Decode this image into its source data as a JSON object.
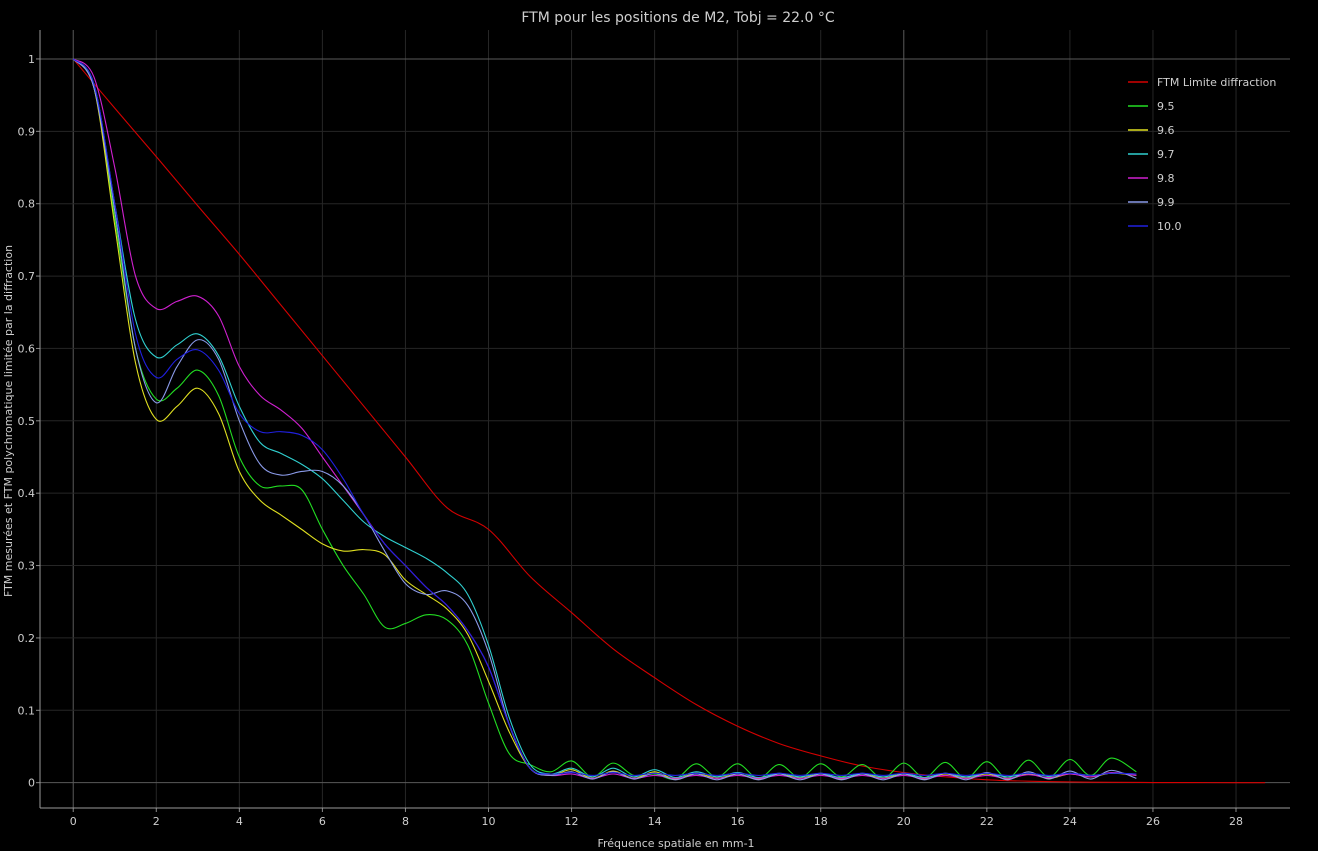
{
  "chart_data": {
    "type": "line",
    "title": "FTM pour les positions de M2, Tobj = 22.0 °C",
    "xlabel": "Fréquence spatiale en mm-1",
    "ylabel": "FTM mesurées et FTM polychromatique limitée par la diffraction",
    "xlim": [
      -0.8,
      29.3
    ],
    "ylim": [
      -0.035,
      1.04
    ],
    "x_ticks": [
      "0",
      "2",
      "4",
      "6",
      "8",
      "10",
      "12",
      "14",
      "16",
      "18",
      "20",
      "22",
      "24",
      "26",
      "28"
    ],
    "y_ticks": [
      "0",
      "0.1",
      "0.2",
      "0.3",
      "0.4",
      "0.5",
      "0.6",
      "0.7",
      "0.8",
      "0.9",
      "1"
    ],
    "grid": true,
    "legend_position": "top-right",
    "series": [
      {
        "name": "FTM Limite diffraction",
        "color": "#d40000",
        "x": [
          0,
          1,
          2,
          3,
          4,
          5,
          6,
          7,
          8,
          9,
          10,
          11,
          12,
          13,
          14,
          15,
          16,
          17,
          18,
          19,
          20,
          21,
          22,
          23,
          24,
          25,
          26,
          27,
          28,
          28.7
        ],
        "y": [
          1.0,
          0.932,
          0.865,
          0.797,
          0.73,
          0.66,
          0.59,
          0.52,
          0.45,
          0.38,
          0.35,
          0.285,
          0.235,
          0.185,
          0.145,
          0.108,
          0.078,
          0.054,
          0.037,
          0.023,
          0.014,
          0.008,
          0.004,
          0.002,
          0.001,
          0.0005,
          0.0002,
          0.0001,
          0.0,
          0.0
        ]
      },
      {
        "name": "9.5",
        "color": "#22dd22",
        "x": [
          0,
          0.5,
          1.0,
          1.5,
          2.0,
          2.5,
          3.0,
          3.5,
          4.0,
          4.5,
          5.0,
          5.5,
          6.0,
          6.5,
          7.0,
          7.5,
          8.0,
          8.5,
          9.0,
          9.5,
          10.0,
          10.5,
          11.0,
          11.5,
          12.0,
          12.5,
          13.0,
          13.5,
          14.0,
          14.5,
          15.0,
          15.5,
          16.0,
          16.5,
          17.0,
          17.5,
          18.0,
          18.5,
          19.0,
          19.5,
          20.0,
          20.5,
          21.0,
          21.5,
          22.0,
          22.5,
          23.0,
          23.5,
          24.0,
          24.5,
          25.0,
          25.6
        ],
        "y": [
          1.0,
          0.96,
          0.78,
          0.6,
          0.53,
          0.545,
          0.57,
          0.535,
          0.45,
          0.41,
          0.41,
          0.405,
          0.35,
          0.3,
          0.26,
          0.215,
          0.22,
          0.232,
          0.225,
          0.19,
          0.11,
          0.04,
          0.025,
          0.015,
          0.03,
          0.008,
          0.027,
          0.01,
          0.012,
          0.005,
          0.026,
          0.008,
          0.026,
          0.006,
          0.025,
          0.007,
          0.026,
          0.008,
          0.025,
          0.006,
          0.027,
          0.007,
          0.028,
          0.006,
          0.029,
          0.006,
          0.031,
          0.008,
          0.032,
          0.01,
          0.034,
          0.015
        ]
      },
      {
        "name": "9.6",
        "color": "#e0e020",
        "x": [
          0,
          0.5,
          1.0,
          1.5,
          2.0,
          2.5,
          3.0,
          3.5,
          4.0,
          4.5,
          5.0,
          5.5,
          6.0,
          6.5,
          7.0,
          7.5,
          8.0,
          8.5,
          9.0,
          9.5,
          10.0,
          10.5,
          11.0,
          11.5,
          12.0,
          12.5,
          13.0,
          13.5,
          14.0,
          14.5,
          15.0,
          15.5,
          16.0,
          16.5,
          17.0,
          17.5,
          18.0,
          18.5,
          19.0,
          19.5,
          20.0,
          20.5,
          21.0,
          21.5,
          22.0,
          22.5,
          23.0,
          23.5,
          24.0,
          24.5,
          25.0,
          25.6
        ],
        "y": [
          1.0,
          0.96,
          0.77,
          0.58,
          0.502,
          0.52,
          0.545,
          0.51,
          0.43,
          0.39,
          0.37,
          0.35,
          0.33,
          0.32,
          0.322,
          0.315,
          0.28,
          0.26,
          0.24,
          0.205,
          0.14,
          0.07,
          0.02,
          0.01,
          0.018,
          0.006,
          0.016,
          0.006,
          0.015,
          0.005,
          0.013,
          0.006,
          0.012,
          0.005,
          0.012,
          0.006,
          0.012,
          0.005,
          0.012,
          0.006,
          0.012,
          0.005,
          0.012,
          0.006,
          0.012,
          0.005,
          0.012,
          0.006,
          0.012,
          0.008,
          0.013,
          0.01
        ]
      },
      {
        "name": "9.7",
        "color": "#30d0d0",
        "x": [
          0,
          0.5,
          1.0,
          1.5,
          2.0,
          2.5,
          3.0,
          3.5,
          4.0,
          4.5,
          5.0,
          5.5,
          6.0,
          6.5,
          7.0,
          7.5,
          8.0,
          8.5,
          9.0,
          9.5,
          10.0,
          10.5,
          11.0,
          11.5,
          12.0,
          12.5,
          13.0,
          13.5,
          14.0,
          14.5,
          15.0,
          15.5,
          16.0,
          16.5,
          17.0,
          17.5,
          18.0,
          18.5,
          19.0,
          19.5,
          20.0,
          20.5,
          21.0,
          21.5,
          22.0,
          22.5,
          23.0,
          23.5,
          24.0,
          24.5,
          25.0,
          25.6
        ],
        "y": [
          1.0,
          0.965,
          0.8,
          0.64,
          0.588,
          0.605,
          0.62,
          0.59,
          0.52,
          0.47,
          0.455,
          0.44,
          0.42,
          0.39,
          0.36,
          0.34,
          0.325,
          0.31,
          0.29,
          0.26,
          0.19,
          0.09,
          0.025,
          0.012,
          0.02,
          0.008,
          0.02,
          0.008,
          0.018,
          0.007,
          0.015,
          0.008,
          0.014,
          0.007,
          0.013,
          0.008,
          0.013,
          0.007,
          0.013,
          0.008,
          0.013,
          0.007,
          0.013,
          0.008,
          0.013,
          0.008,
          0.013,
          0.009,
          0.013,
          0.01,
          0.013,
          0.012
        ]
      },
      {
        "name": "9.8",
        "color": "#d020d0",
        "x": [
          0,
          0.5,
          1.0,
          1.5,
          2.0,
          2.5,
          3.0,
          3.5,
          4.0,
          4.5,
          5.0,
          5.5,
          6.0,
          6.5,
          7.0,
          7.5,
          8.0,
          8.5,
          9.0,
          9.5,
          10.0,
          10.5,
          11.0,
          11.5,
          12.0,
          12.5,
          13.0,
          13.5,
          14.0,
          14.5,
          15.0,
          15.5,
          16.0,
          16.5,
          17.0,
          17.5,
          18.0,
          18.5,
          19.0,
          19.5,
          20.0,
          20.5,
          21.0,
          21.5,
          22.0,
          22.5,
          23.0,
          23.5,
          24.0,
          24.5,
          25.0,
          25.6
        ],
        "y": [
          1.0,
          0.975,
          0.85,
          0.7,
          0.655,
          0.665,
          0.672,
          0.645,
          0.575,
          0.535,
          0.515,
          0.49,
          0.45,
          0.41,
          0.37,
          0.33,
          0.3,
          0.27,
          0.245,
          0.21,
          0.16,
          0.08,
          0.02,
          0.01,
          0.012,
          0.006,
          0.012,
          0.006,
          0.01,
          0.006,
          0.01,
          0.006,
          0.01,
          0.006,
          0.01,
          0.006,
          0.01,
          0.006,
          0.01,
          0.006,
          0.01,
          0.006,
          0.01,
          0.006,
          0.01,
          0.006,
          0.011,
          0.007,
          0.012,
          0.008,
          0.014,
          0.01
        ]
      },
      {
        "name": "9.9",
        "color": "#8a9ae8",
        "x": [
          0,
          0.5,
          1.0,
          1.5,
          2.0,
          2.5,
          3.0,
          3.5,
          4.0,
          4.5,
          5.0,
          5.5,
          6.0,
          6.5,
          7.0,
          7.5,
          8.0,
          8.5,
          9.0,
          9.5,
          10.0,
          10.5,
          11.0,
          11.5,
          12.0,
          12.5,
          13.0,
          13.5,
          14.0,
          14.5,
          15.0,
          15.5,
          16.0,
          16.5,
          17.0,
          17.5,
          18.0,
          18.5,
          19.0,
          19.5,
          20.0,
          20.5,
          21.0,
          21.5,
          22.0,
          22.5,
          23.0,
          23.5,
          24.0,
          24.5,
          25.0,
          25.6
        ],
        "y": [
          1.0,
          0.96,
          0.79,
          0.6,
          0.525,
          0.575,
          0.612,
          0.585,
          0.5,
          0.44,
          0.425,
          0.43,
          0.43,
          0.41,
          0.37,
          0.32,
          0.275,
          0.26,
          0.265,
          0.245,
          0.18,
          0.08,
          0.02,
          0.01,
          0.015,
          0.005,
          0.015,
          0.005,
          0.013,
          0.004,
          0.012,
          0.004,
          0.012,
          0.004,
          0.012,
          0.004,
          0.012,
          0.004,
          0.012,
          0.004,
          0.012,
          0.004,
          0.013,
          0.004,
          0.014,
          0.004,
          0.015,
          0.005,
          0.016,
          0.005,
          0.017,
          0.006
        ]
      },
      {
        "name": "10.0",
        "color": "#2020e0",
        "x": [
          0,
          0.5,
          1.0,
          1.5,
          2.0,
          2.5,
          3.0,
          3.5,
          4.0,
          4.5,
          5.0,
          5.5,
          6.0,
          6.5,
          7.0,
          7.5,
          8.0,
          8.5,
          9.0,
          9.5,
          10.0,
          10.5,
          11.0,
          11.5,
          12.0,
          12.5,
          13.0,
          13.5,
          14.0,
          14.5,
          15.0,
          15.5,
          16.0,
          16.5,
          17.0,
          17.5,
          18.0,
          18.5,
          19.0,
          19.5,
          20.0,
          20.5,
          21.0,
          21.5,
          22.0,
          22.5,
          23.0,
          23.5,
          24.0,
          24.5,
          25.0,
          25.6
        ],
        "y": [
          1.0,
          0.965,
          0.8,
          0.62,
          0.56,
          0.585,
          0.598,
          0.57,
          0.51,
          0.485,
          0.485,
          0.48,
          0.46,
          0.42,
          0.37,
          0.33,
          0.3,
          0.27,
          0.245,
          0.21,
          0.16,
          0.08,
          0.02,
          0.012,
          0.014,
          0.01,
          0.014,
          0.01,
          0.013,
          0.01,
          0.013,
          0.01,
          0.013,
          0.01,
          0.013,
          0.01,
          0.013,
          0.01,
          0.013,
          0.01,
          0.013,
          0.01,
          0.013,
          0.01,
          0.013,
          0.01,
          0.013,
          0.01,
          0.013,
          0.01,
          0.013,
          0.012
        ]
      }
    ]
  }
}
